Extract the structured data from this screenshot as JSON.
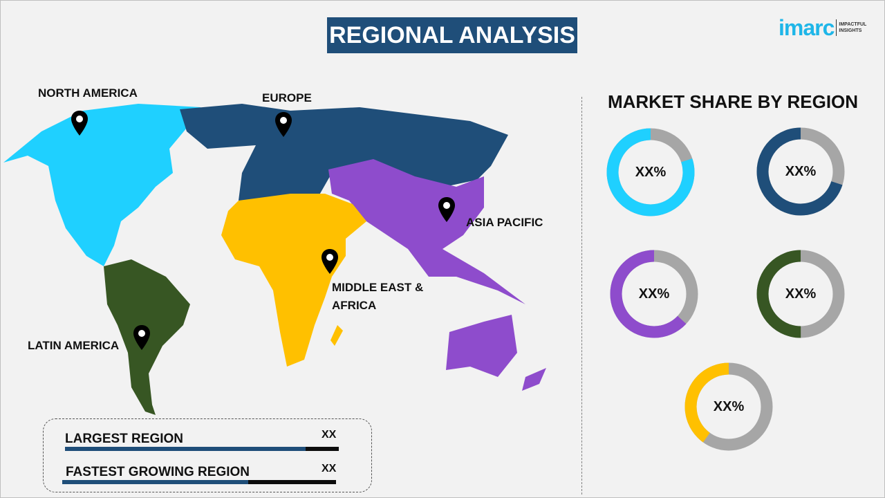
{
  "header": {
    "title": "REGIONAL ANALYSIS"
  },
  "logo": {
    "word": "imarc",
    "tagline_1": "IMPACTFUL",
    "tagline_2": "INSIGHTS"
  },
  "map": {
    "regions": [
      {
        "label": "NORTH AMERICA",
        "color": "#1fd0ff"
      },
      {
        "label": "EUROPE",
        "color": "#1f4e79"
      },
      {
        "label": "ASIA PACIFIC",
        "color": "#8e4ccc"
      },
      {
        "label": "MIDDLE EAST & AFRICA",
        "color": "#ffc000"
      },
      {
        "label": "LATIN AMERICA",
        "color": "#375623"
      }
    ],
    "pin_icon": "map-marker-icon"
  },
  "stats": {
    "largest_label": "LARGEST REGION",
    "largest_value": "XX",
    "largest_bar_fraction": 0.88,
    "fastest_label": "FASTEST GROWING REGION",
    "fastest_value": "XX",
    "fastest_bar_fraction": 0.68
  },
  "market_share": {
    "title": "MARKET SHARE BY REGION",
    "remainder_color": "#a6a6a6",
    "donuts": [
      {
        "label": "XX%",
        "color": "#1fd0ff",
        "fraction": 0.8
      },
      {
        "label": "XX%",
        "color": "#1f4e79",
        "fraction": 0.7
      },
      {
        "label": "XX%",
        "color": "#8e4ccc",
        "fraction": 0.63
      },
      {
        "label": "XX%",
        "color": "#375623",
        "fraction": 0.5
      },
      {
        "label": "XX%",
        "color": "#ffc000",
        "fraction": 0.4
      }
    ]
  }
}
